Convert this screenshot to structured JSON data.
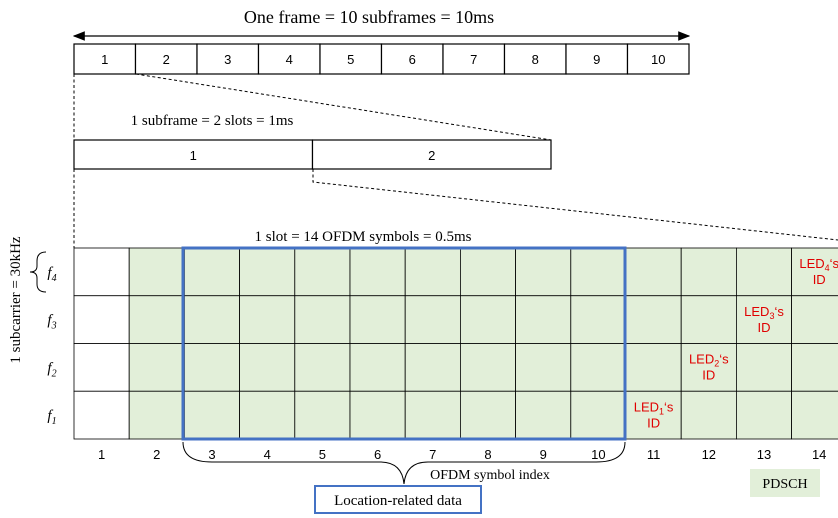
{
  "frame": {
    "title": "One frame = 10 subframes = 10ms",
    "subframe_labels": [
      "1",
      "2",
      "3",
      "4",
      "5",
      "6",
      "7",
      "8",
      "9",
      "10"
    ]
  },
  "subframe": {
    "title": "1 subframe = 2 slots = 1ms",
    "slot_labels": [
      "1",
      "2"
    ]
  },
  "slot": {
    "title": "1 slot = 14 OFDM symbols = 0.5ms",
    "symbol_indices": [
      "1",
      "2",
      "3",
      "4",
      "5",
      "6",
      "7",
      "8",
      "9",
      "10",
      "11",
      "12",
      "13",
      "14"
    ],
    "axis_label": "OFDM symbol index",
    "subcarrier_label": "1 subcarrier = 30kHz",
    "subcarriers": [
      {
        "base": "f",
        "sub": "4"
      },
      {
        "base": "f",
        "sub": "3"
      },
      {
        "base": "f",
        "sub": "2"
      },
      {
        "base": "f",
        "sub": "1"
      }
    ]
  },
  "led_ids": [
    {
      "pre": "LED",
      "sub": "1",
      "post": "‘s",
      "line2": "ID",
      "symbol": 11,
      "subcarrier": 1
    },
    {
      "pre": "LED",
      "sub": "2",
      "post": "‘s",
      "line2": "ID",
      "symbol": 12,
      "subcarrier": 2
    },
    {
      "pre": "LED",
      "sub": "3",
      "post": "‘s",
      "line2": "ID",
      "symbol": 13,
      "subcarrier": 3
    },
    {
      "pre": "LED",
      "sub": "4",
      "post": "‘s",
      "line2": "ID",
      "symbol": 14,
      "subcarrier": 4
    }
  ],
  "location_label": "Location-related data",
  "legend": {
    "label": "PDSCH",
    "color": "#e2efd9"
  },
  "colors": {
    "highlight": "#4472c4",
    "led_text": "#e00000",
    "cell_fill": "#e2efd9"
  }
}
